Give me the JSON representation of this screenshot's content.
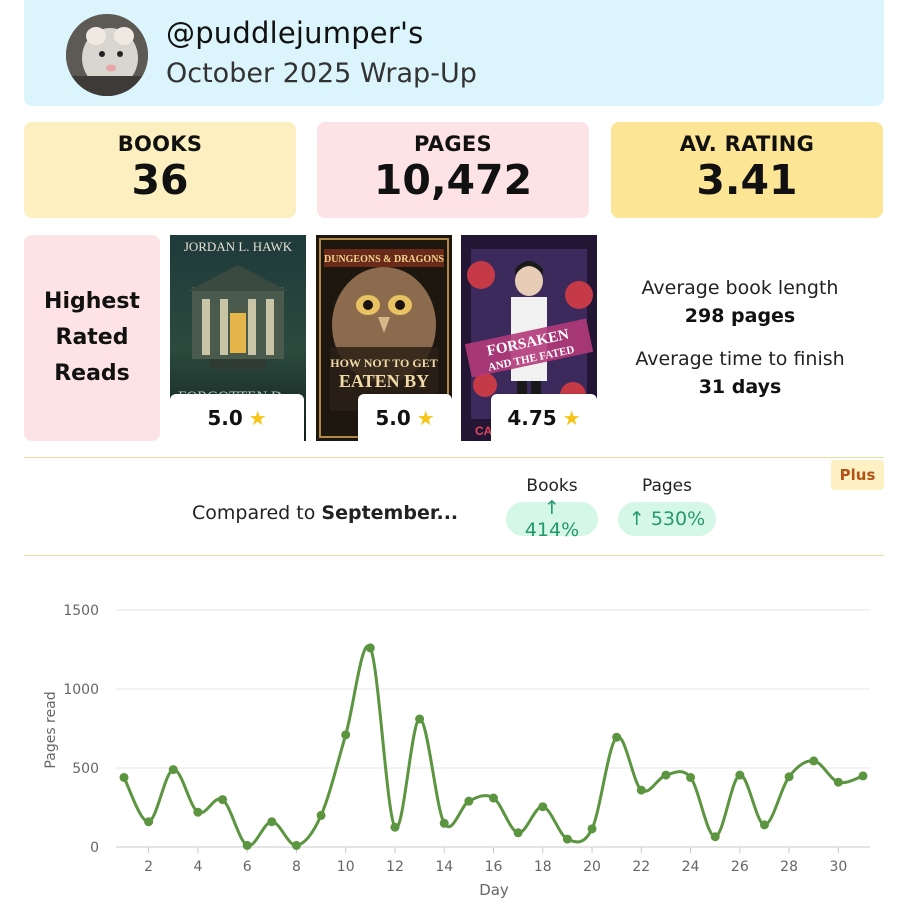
{
  "header": {
    "username": "@puddlejumper's",
    "subtitle": "October 2025 Wrap-Up"
  },
  "stats": {
    "books_label": "BOOKS",
    "books_value": "36",
    "pages_label": "PAGES",
    "pages_value": "10,472",
    "rating_label": "AV. RATING",
    "rating_value": "3.41"
  },
  "highest_rated": {
    "title_line1": "Highest",
    "title_line2": "Rated",
    "title_line3": "Reads",
    "books": [
      {
        "cover_author": "JORDAN L. HAWK",
        "cover_title": "FORGOTTEN D",
        "rating": "5.0"
      },
      {
        "cover_brand": "DUNGEONS & DRAGONS",
        "cover_title_1": "HOW NOT TO GET",
        "cover_title_2": "EATEN BY",
        "rating": "5.0"
      },
      {
        "cover_title_1": "FORSAKEN",
        "cover_title_2": "AND THE FATED",
        "cover_author": "CA",
        "rating": "4.75"
      }
    ]
  },
  "averages": {
    "length_label": "Average book length",
    "length_value": "298 pages",
    "time_label": "Average time to finish",
    "time_value": "31 days"
  },
  "comparison": {
    "plus_badge": "Plus",
    "compared_prefix": "Compared to ",
    "compared_month": "September...",
    "books_label": "Books",
    "books_change": "↑ 414%",
    "pages_label": "Pages",
    "pages_change": "↑ 530%"
  },
  "chart_data": {
    "type": "line",
    "xlabel": "Day",
    "ylabel": "Pages read",
    "xlim": [
      1,
      31
    ],
    "ylim": [
      0,
      1500
    ],
    "yticks": [
      0,
      500,
      1000,
      1500
    ],
    "xticks": [
      2,
      4,
      6,
      8,
      10,
      12,
      14,
      16,
      18,
      20,
      22,
      24,
      26,
      28,
      30
    ],
    "grid": true,
    "legend": "none",
    "color": "#5b9540",
    "x": [
      1,
      2,
      3,
      4,
      5,
      6,
      7,
      8,
      9,
      10,
      11,
      12,
      13,
      14,
      15,
      16,
      17,
      18,
      19,
      20,
      21,
      22,
      23,
      24,
      25,
      26,
      27,
      28,
      29,
      30,
      31
    ],
    "series": [
      {
        "values": [
          440,
          160,
          490,
          220,
          300,
          10,
          160,
          10,
          200,
          710,
          1260,
          125,
          810,
          150,
          290,
          310,
          90,
          255,
          50,
          115,
          695,
          360,
          455,
          440,
          65,
          455,
          140,
          445,
          545,
          410,
          450
        ]
      }
    ]
  }
}
